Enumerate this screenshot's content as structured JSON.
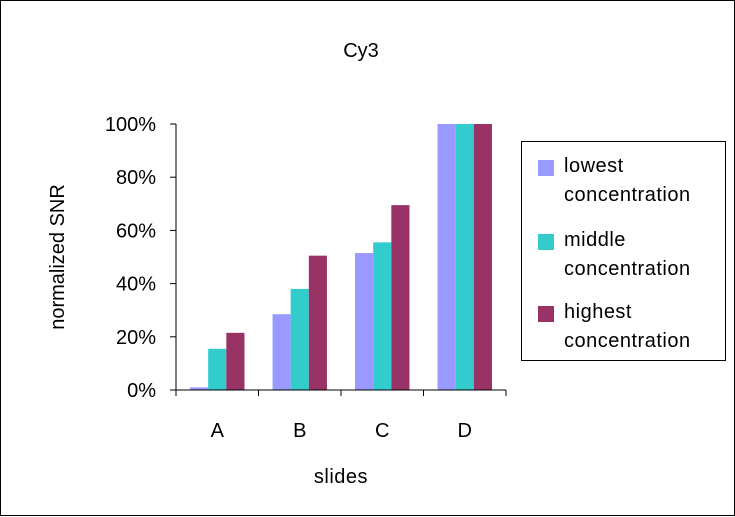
{
  "chart_data": {
    "type": "bar",
    "title": "Cy3",
    "xlabel": "slides",
    "ylabel": "normalized SNR",
    "categories": [
      "A",
      "B",
      "C",
      "D"
    ],
    "series": [
      {
        "name": "lowest concentration",
        "color": "#9999FF",
        "values": [
          1,
          28.5,
          51.5,
          100
        ]
      },
      {
        "name": "middle concentration",
        "color": "#33CCCC",
        "values": [
          15.5,
          38,
          55.5,
          100
        ]
      },
      {
        "name": "highest concentration",
        "color": "#993366",
        "values": [
          21.5,
          50.5,
          69.5,
          100
        ]
      }
    ],
    "ylim": [
      0,
      100
    ],
    "yticks": [
      0,
      20,
      40,
      60,
      80,
      100
    ],
    "ytick_labels": [
      "0%",
      "20%",
      "40%",
      "60%",
      "80%",
      "100%"
    ],
    "grid": false,
    "legend_position": "right"
  }
}
